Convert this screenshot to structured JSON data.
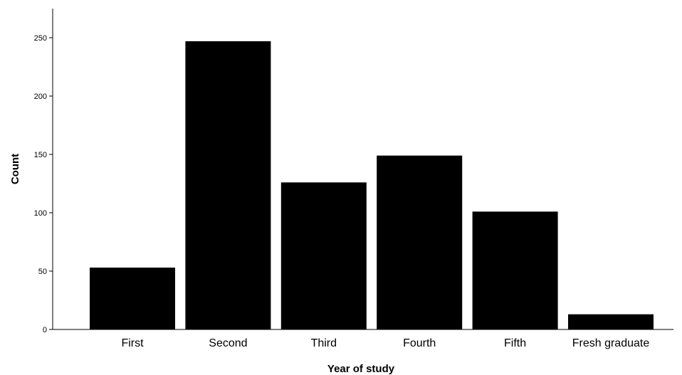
{
  "chart_data": {
    "type": "bar",
    "categories": [
      "First",
      "Second",
      "Third",
      "Fourth",
      "Fifth",
      "Fresh graduate"
    ],
    "values": [
      53,
      247,
      126,
      149,
      101,
      13
    ],
    "xlabel": "Year of study",
    "ylabel": "Count",
    "ylim": [
      0,
      275
    ],
    "yticks": [
      0,
      50,
      100,
      150,
      200,
      250
    ],
    "bar_color": "#000000",
    "grid": false
  }
}
